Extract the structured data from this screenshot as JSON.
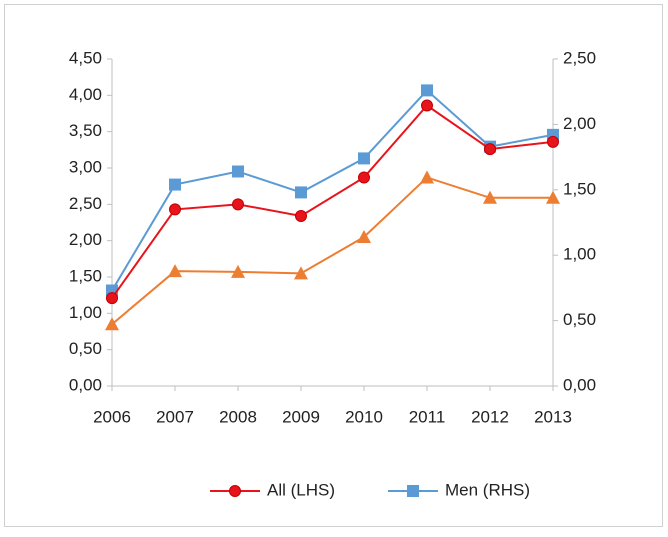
{
  "chart_data": {
    "type": "line",
    "categories": [
      "2006",
      "2007",
      "2008",
      "2009",
      "2010",
      "2011",
      "2012",
      "2013"
    ],
    "series": [
      {
        "name": "All (LHS)",
        "color": "#e8141b",
        "marker": "circle",
        "values": [
          1.21,
          2.43,
          2.5,
          2.34,
          2.87,
          3.86,
          3.26,
          3.36
        ]
      },
      {
        "name": "Men (RHS)",
        "color": "#5b9bd5",
        "marker": "square",
        "axis": "y2",
        "values": [
          0.73,
          1.54,
          1.64,
          1.48,
          1.74,
          2.26,
          1.83,
          1.92
        ]
      },
      {
        "color": "#ed7d31",
        "marker": "triangle",
        "values": [
          0.85,
          1.58,
          1.57,
          1.55,
          2.05,
          2.87,
          2.59,
          2.59
        ]
      }
    ],
    "ylim": [
      0,
      4.5
    ],
    "yticks": [
      {
        "value": 0,
        "label": "0,00"
      },
      {
        "value": 0.5,
        "label": "0,50"
      },
      {
        "value": 1,
        "label": "1,00"
      },
      {
        "value": 1.5,
        "label": "1,50"
      },
      {
        "value": 2,
        "label": "2,00"
      },
      {
        "value": 2.5,
        "label": "2,50"
      },
      {
        "value": 3,
        "label": "3,00"
      },
      {
        "value": 3.5,
        "label": "3,50"
      },
      {
        "value": 4,
        "label": "4,00"
      },
      {
        "value": 4.5,
        "label": "4,50"
      }
    ],
    "y2lim": [
      0,
      2.5
    ],
    "y2ticks": [
      {
        "value": 0,
        "label": "0,00"
      },
      {
        "value": 0.5,
        "label": "0,50"
      },
      {
        "value": 1,
        "label": "1,00"
      },
      {
        "value": 1.5,
        "label": "1,50"
      },
      {
        "value": 2,
        "label": "2,00"
      },
      {
        "value": 2.5,
        "label": "2,50"
      }
    ],
    "legend": "bottom"
  }
}
